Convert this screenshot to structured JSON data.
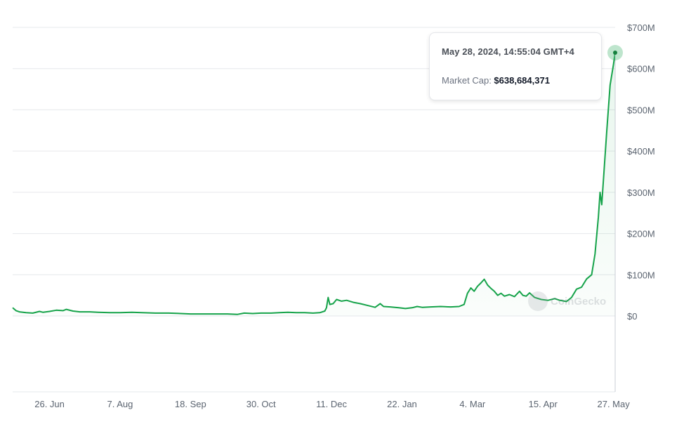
{
  "chart_data": {
    "type": "area",
    "title": "",
    "xlabel": "",
    "ylabel": "",
    "ylim": [
      -180000000,
      700000000
    ],
    "y_ticks": [
      "$700M",
      "$600M",
      "$500M",
      "$400M",
      "$300M",
      "$200M",
      "$100M",
      "$0"
    ],
    "y_tick_values": [
      700000000,
      600000000,
      500000000,
      400000000,
      300000000,
      200000000,
      100000000,
      0
    ],
    "x_ticks": [
      "26. Jun",
      "7. Aug",
      "18. Sep",
      "30. Oct",
      "11. Dec",
      "22. Jan",
      "4. Mar",
      "15. Apr",
      "27. May"
    ],
    "x_tick_dates": [
      "2023-06-26",
      "2023-08-07",
      "2023-09-18",
      "2023-10-30",
      "2023-12-11",
      "2024-01-22",
      "2024-03-04",
      "2024-04-15",
      "2024-05-27"
    ],
    "xlim": [
      "2023-06-04",
      "2024-05-28"
    ],
    "grid": true,
    "series": [
      {
        "color": "#16a34a",
        "points": [
          [
            "2023-06-04",
            20000000
          ],
          [
            "2023-06-06",
            13000000
          ],
          [
            "2023-06-08",
            10000000
          ],
          [
            "2023-06-12",
            8000000
          ],
          [
            "2023-06-16",
            7000000
          ],
          [
            "2023-06-20",
            11000000
          ],
          [
            "2023-06-22",
            9000000
          ],
          [
            "2023-06-26",
            11000000
          ],
          [
            "2023-06-30",
            14000000
          ],
          [
            "2023-07-04",
            13000000
          ],
          [
            "2023-07-06",
            16000000
          ],
          [
            "2023-07-10",
            12000000
          ],
          [
            "2023-07-14",
            10000000
          ],
          [
            "2023-07-20",
            10000000
          ],
          [
            "2023-07-25",
            9000000
          ],
          [
            "2023-08-01",
            8000000
          ],
          [
            "2023-08-07",
            8000000
          ],
          [
            "2023-08-14",
            9000000
          ],
          [
            "2023-08-20",
            8000000
          ],
          [
            "2023-08-28",
            7000000
          ],
          [
            "2023-09-05",
            7000000
          ],
          [
            "2023-09-12",
            6000000
          ],
          [
            "2023-09-18",
            5000000
          ],
          [
            "2023-09-25",
            5000000
          ],
          [
            "2023-10-02",
            5000000
          ],
          [
            "2023-10-10",
            5000000
          ],
          [
            "2023-10-16",
            4000000
          ],
          [
            "2023-10-20",
            7000000
          ],
          [
            "2023-10-25",
            6000000
          ],
          [
            "2023-10-30",
            7000000
          ],
          [
            "2023-11-05",
            7000000
          ],
          [
            "2023-11-10",
            8000000
          ],
          [
            "2023-11-15",
            9000000
          ],
          [
            "2023-11-20",
            8000000
          ],
          [
            "2023-11-25",
            8000000
          ],
          [
            "2023-11-30",
            7000000
          ],
          [
            "2023-12-04",
            8000000
          ],
          [
            "2023-12-07",
            12000000
          ],
          [
            "2023-12-08",
            20000000
          ],
          [
            "2023-12-09",
            45000000
          ],
          [
            "2023-12-10",
            28000000
          ],
          [
            "2023-12-12",
            30000000
          ],
          [
            "2023-12-14",
            40000000
          ],
          [
            "2023-12-17",
            36000000
          ],
          [
            "2023-12-20",
            38000000
          ],
          [
            "2023-12-24",
            33000000
          ],
          [
            "2023-12-28",
            30000000
          ],
          [
            "2024-01-02",
            25000000
          ],
          [
            "2024-01-06",
            21000000
          ],
          [
            "2024-01-09",
            30000000
          ],
          [
            "2024-01-11",
            23000000
          ],
          [
            "2024-01-15",
            22000000
          ],
          [
            "2024-01-20",
            20000000
          ],
          [
            "2024-01-24",
            18000000
          ],
          [
            "2024-01-28",
            20000000
          ],
          [
            "2024-01-31",
            23000000
          ],
          [
            "2024-02-03",
            21000000
          ],
          [
            "2024-02-08",
            22000000
          ],
          [
            "2024-02-14",
            23000000
          ],
          [
            "2024-02-20",
            22000000
          ],
          [
            "2024-02-25",
            23000000
          ],
          [
            "2024-02-28",
            28000000
          ],
          [
            "2024-03-01",
            55000000
          ],
          [
            "2024-03-03",
            68000000
          ],
          [
            "2024-03-05",
            60000000
          ],
          [
            "2024-03-07",
            72000000
          ],
          [
            "2024-03-09",
            80000000
          ],
          [
            "2024-03-11",
            89000000
          ],
          [
            "2024-03-13",
            75000000
          ],
          [
            "2024-03-15",
            67000000
          ],
          [
            "2024-03-17",
            60000000
          ],
          [
            "2024-03-19",
            50000000
          ],
          [
            "2024-03-21",
            55000000
          ],
          [
            "2024-03-23",
            48000000
          ],
          [
            "2024-03-26",
            52000000
          ],
          [
            "2024-03-29",
            47000000
          ],
          [
            "2024-04-01",
            60000000
          ],
          [
            "2024-04-03",
            50000000
          ],
          [
            "2024-04-05",
            48000000
          ],
          [
            "2024-04-07",
            56000000
          ],
          [
            "2024-04-10",
            45000000
          ],
          [
            "2024-04-14",
            40000000
          ],
          [
            "2024-04-18",
            38000000
          ],
          [
            "2024-04-22",
            42000000
          ],
          [
            "2024-04-25",
            38000000
          ],
          [
            "2024-04-29",
            35000000
          ],
          [
            "2024-05-02",
            45000000
          ],
          [
            "2024-05-05",
            65000000
          ],
          [
            "2024-05-08",
            70000000
          ],
          [
            "2024-05-11",
            90000000
          ],
          [
            "2024-05-14",
            100000000
          ],
          [
            "2024-05-16",
            150000000
          ],
          [
            "2024-05-18",
            240000000
          ],
          [
            "2024-05-19",
            300000000
          ],
          [
            "2024-05-20",
            270000000
          ],
          [
            "2024-05-21",
            330000000
          ],
          [
            "2024-05-23",
            450000000
          ],
          [
            "2024-05-25",
            560000000
          ],
          [
            "2024-05-27",
            610000000
          ],
          [
            "2024-05-28",
            638684371
          ]
        ]
      }
    ]
  },
  "tooltip": {
    "date": "May 28, 2024, 14:55:04 GMT+4",
    "label": "Market Cap: ",
    "value": "$638,684,371"
  },
  "watermark": {
    "text": "CoinGecko"
  }
}
